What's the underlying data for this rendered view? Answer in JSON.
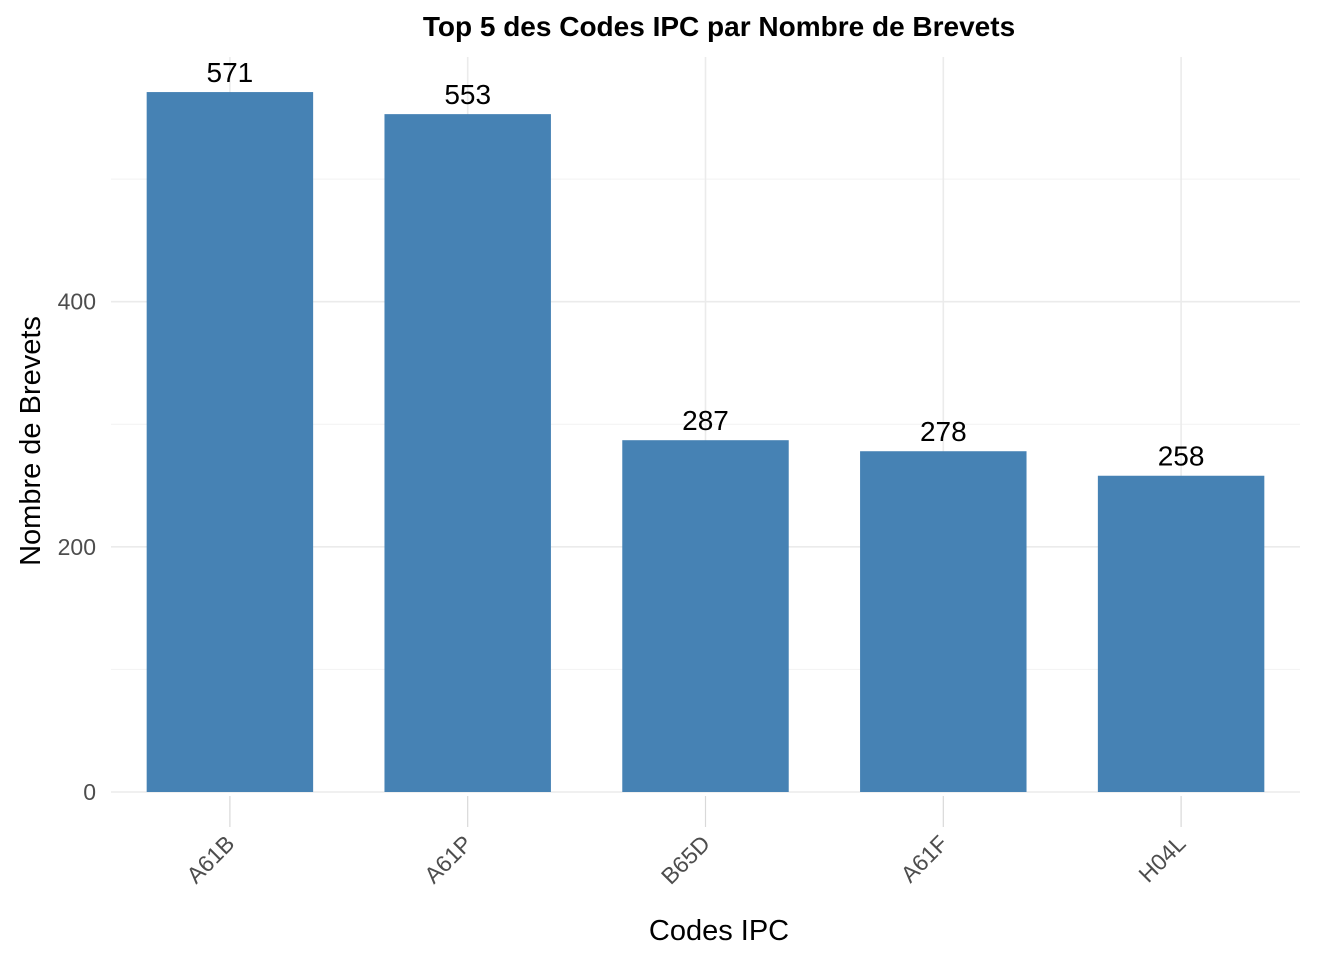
{
  "chart_data": {
    "type": "bar",
    "title": "Top 5 des Codes IPC par Nombre de Brevets",
    "xlabel": "Codes IPC",
    "ylabel": "Nombre de Brevets",
    "categories": [
      "A61B",
      "A61P",
      "B65D",
      "A61F",
      "H04L"
    ],
    "values": [
      571,
      553,
      287,
      278,
      258
    ],
    "data_labels": [
      "571",
      "553",
      "287",
      "278",
      "258"
    ],
    "yticks": [
      0,
      200,
      400
    ],
    "ytick_labels": [
      "0",
      "200",
      "400"
    ],
    "ylim": [
      0,
      600
    ],
    "grid": true,
    "legend": "none",
    "bar_color": "#4682B4"
  }
}
